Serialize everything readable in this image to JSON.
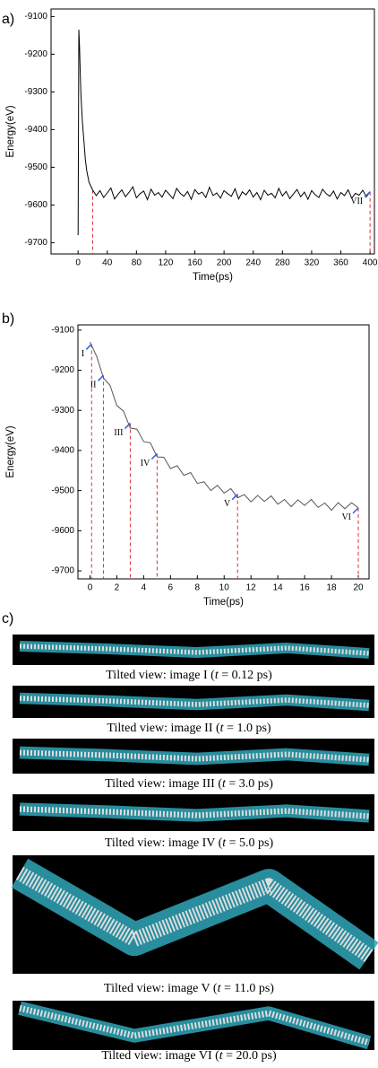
{
  "panels": [
    "a)",
    "b)",
    "c)"
  ],
  "chart_data": [
    {
      "type": "line",
      "xlabel": "Time(ps)",
      "ylabel": "Energy(eV)",
      "color": "#000000",
      "xlim": [
        -37,
        406
      ],
      "ylim": [
        -9730,
        -9080
      ],
      "xticks": [
        0,
        40,
        80,
        120,
        160,
        200,
        240,
        280,
        320,
        360,
        400
      ],
      "yticks": [
        -9100,
        -9200,
        -9300,
        -9400,
        -9500,
        -9600,
        -9700
      ],
      "x": [
        0,
        1,
        2,
        3,
        4,
        6,
        8,
        10,
        12,
        15,
        20,
        25,
        30,
        35,
        40,
        45,
        50,
        55,
        60,
        65,
        70,
        75,
        80,
        85,
        90,
        95,
        100,
        105,
        110,
        115,
        120,
        125,
        130,
        135,
        140,
        145,
        150,
        155,
        160,
        165,
        170,
        175,
        180,
        185,
        190,
        195,
        200,
        205,
        210,
        215,
        220,
        225,
        230,
        235,
        240,
        245,
        250,
        255,
        260,
        265,
        270,
        275,
        280,
        285,
        290,
        295,
        300,
        305,
        310,
        315,
        320,
        325,
        330,
        335,
        340,
        345,
        350,
        355,
        360,
        365,
        370,
        375,
        380,
        385,
        390,
        395,
        400
      ],
      "values": [
        -9680,
        -9135,
        -9180,
        -9250,
        -9310,
        -9380,
        -9430,
        -9480,
        -9510,
        -9540,
        -9560,
        -9575,
        -9562,
        -9580,
        -9568,
        -9555,
        -9584,
        -9571,
        -9560,
        -9578,
        -9566,
        -9552,
        -9581,
        -9570,
        -9563,
        -9586,
        -9558,
        -9574,
        -9567,
        -9579,
        -9561,
        -9572,
        -9583,
        -9556,
        -9569,
        -9577,
        -9564,
        -9585,
        -9559,
        -9571,
        -9566,
        -9580,
        -9553,
        -9575,
        -9568,
        -9582,
        -9562,
        -9570,
        -9577,
        -9557,
        -9584,
        -9565,
        -9573,
        -9560,
        -9579,
        -9567,
        -9586,
        -9561,
        -9574,
        -9569,
        -9581,
        -9556,
        -9576,
        -9564,
        -9583,
        -9571,
        -9559,
        -9578,
        -9566,
        -9585,
        -9562,
        -9573,
        -9580,
        -9558,
        -9570,
        -9577,
        -9563,
        -9584,
        -9567,
        -9575,
        -9560,
        -9582,
        -9569,
        -9574,
        -9561,
        -9578,
        -9565
      ],
      "reference_lines": [
        {
          "x": 20,
          "y": -9560
        },
        {
          "x": 400,
          "y": -9565
        }
      ],
      "annotations": [
        {
          "text": "VII",
          "x": 400,
          "y": -9565
        }
      ]
    },
    {
      "type": "line",
      "xlabel": "Time(ps)",
      "ylabel": "Energy(eV)",
      "color": "#555555",
      "xlim": [
        -0.9,
        20.8
      ],
      "ylim": [
        -9720,
        -9087
      ],
      "xticks": [
        0,
        2,
        4,
        6,
        8,
        10,
        12,
        14,
        16,
        18,
        20
      ],
      "yticks": [
        -9100,
        -9200,
        -9300,
        -9400,
        -9500,
        -9600,
        -9700
      ],
      "x": [
        0,
        0.5,
        1,
        1.5,
        2,
        2.5,
        3,
        3.5,
        4,
        4.5,
        5,
        5.5,
        6,
        6.5,
        7,
        7.5,
        8,
        8.5,
        9,
        9.5,
        10,
        10.5,
        11,
        11.5,
        12,
        12.5,
        13,
        13.5,
        14,
        14.5,
        15,
        15.5,
        16,
        16.5,
        17,
        17.5,
        18,
        18.5,
        19,
        19.5,
        20
      ],
      "values": [
        -9130,
        -9166,
        -9219,
        -9238,
        -9288,
        -9302,
        -9344,
        -9347,
        -9378,
        -9381,
        -9416,
        -9417,
        -9445,
        -9438,
        -9462,
        -9455,
        -9482,
        -9478,
        -9500,
        -9487,
        -9506,
        -9495,
        -9518,
        -9510,
        -9528,
        -9512,
        -9527,
        -9513,
        -9534,
        -9522,
        -9540,
        -9523,
        -9537,
        -9522,
        -9542,
        -9531,
        -9549,
        -9530,
        -9545,
        -9530,
        -9543
      ],
      "reference_lines": [
        {
          "x": 0.12,
          "y": -9135
        },
        {
          "x": 1,
          "y": -9213
        },
        {
          "x": 3,
          "y": -9332
        },
        {
          "x": 5,
          "y": -9408
        },
        {
          "x": 11,
          "y": -9509
        },
        {
          "x": 20,
          "y": -9543
        }
      ],
      "annotations": [
        {
          "text": "I",
          "x": 0.12,
          "y": -9135
        },
        {
          "text": "II",
          "x": 1,
          "y": -9213
        },
        {
          "text": "III",
          "x": 3,
          "y": -9332
        },
        {
          "text": "IV",
          "x": 5,
          "y": -9408
        },
        {
          "text": "V",
          "x": 11,
          "y": -9509
        },
        {
          "text": "VI",
          "x": 20,
          "y": -9543
        }
      ]
    }
  ],
  "images": [
    {
      "pre": "Tilted view: image I (",
      "var": "t",
      "post": " = 0.12 ps)"
    },
    {
      "pre": "Tilted view: image II (",
      "var": "t",
      "post": " = 1.0 ps)"
    },
    {
      "pre": "Tilted view: image III (",
      "var": "t",
      "post": " = 3.0 ps)"
    },
    {
      "pre": "Tilted view: image IV (",
      "var": "t",
      "post": " = 5.0 ps)"
    },
    {
      "pre": "Tilted view: image V (",
      "var": "t",
      "post": " = 11.0 ps)"
    },
    {
      "pre": "Tilted view: image VI (",
      "var": "t",
      "post": " = 20.0 ps)"
    }
  ]
}
